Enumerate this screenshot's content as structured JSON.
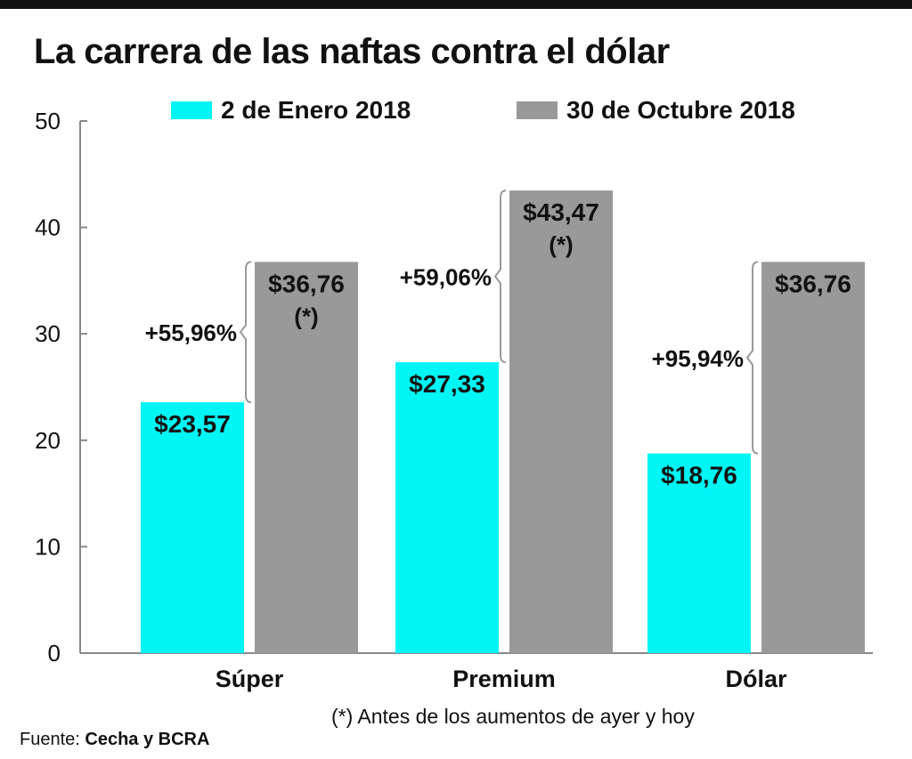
{
  "title": "La carrera de las naftas contra el dólar",
  "footnote": "(*)  Antes de los aumentos de ayer y hoy",
  "source": {
    "label": "Fuente:",
    "value": "Cecha y BCRA"
  },
  "colors": {
    "series_1": "#00f5f5",
    "series_2": "#999999",
    "bracket": "#999999"
  },
  "chart_data": {
    "type": "bar",
    "categories": [
      "Súper",
      "Premium",
      "Dólar"
    ],
    "series": [
      {
        "name": "2 de Enero 2018",
        "values": [
          23.57,
          27.33,
          18.76
        ],
        "labels": [
          "$23,57",
          "$27,33",
          "$18,76"
        ],
        "notes": [
          "",
          "",
          ""
        ]
      },
      {
        "name": "30 de Octubre 2018",
        "values": [
          36.76,
          43.47,
          36.76
        ],
        "labels": [
          "$36,76",
          "$43,47",
          "$36,76"
        ],
        "notes": [
          "(*)",
          "(*)",
          ""
        ]
      }
    ],
    "changes": [
      "+55,96%",
      "+59,06%",
      "+95,94%"
    ],
    "ylim": [
      0,
      50
    ],
    "yticks": [
      0,
      10,
      20,
      30,
      40,
      50
    ],
    "xlabel": "",
    "ylabel": "",
    "grid": false,
    "legend": "top"
  }
}
